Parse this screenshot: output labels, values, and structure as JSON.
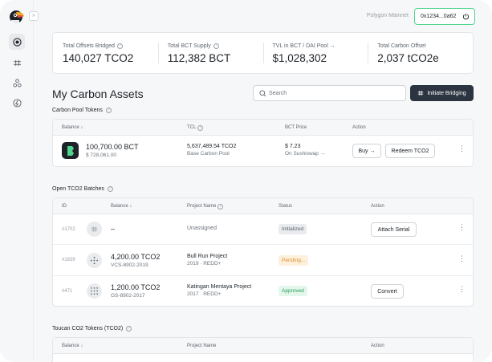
{
  "header": {
    "network": "Polygon Mainnet",
    "wallet_address": "0x1234...0a62"
  },
  "stats": [
    {
      "label": "Total Offsets Bridged",
      "value": "140,027 TCO2",
      "help": true
    },
    {
      "label": "Total BCT Supply",
      "value": "112,382 BCT",
      "help": true
    },
    {
      "label": "TVL in BCT / DAI Pool →",
      "value": "$1,028,302",
      "help": false
    },
    {
      "label": "Total Carbon Offset",
      "value": "2,037 tCO2e",
      "help": false
    }
  ],
  "page_title": "My Carbon Assets",
  "search": {
    "placeholder": "Search"
  },
  "bridge_button": {
    "label": "Initiate Bridging"
  },
  "pool_tokens": {
    "title": "Carbon Pool Tokens",
    "columns": [
      "Balance ↓",
      "TCL",
      "BCT Price",
      "Action"
    ],
    "rows": [
      {
        "balance": "100,700.00 BCT",
        "balance_usd": "$ 728,061.00",
        "tcl_value": "5,637,489.54 TCO2",
        "tcl_name": "Base Carbon Pool",
        "price": "$ 7.23",
        "price_source": "On Sushiswap →",
        "buy_label": "Buy →",
        "redeem_label": "Redeem TCO2"
      }
    ]
  },
  "batches": {
    "title": "Open TCO2 Batches",
    "columns": [
      "ID",
      "Balance ↓",
      "Project Name",
      "Status",
      "Action"
    ],
    "rows": [
      {
        "id": "#1702",
        "balance": "–",
        "balance_sub": "",
        "project": "Unassigned",
        "project_sub": "",
        "status": "Initialized",
        "action": "Attach Serial"
      },
      {
        "id": "#1839",
        "balance": "4,200.00 TCO2",
        "balance_sub": "VCS-8902-2019",
        "project": "Bull Run Project",
        "project_sub": "2019 · REDD+",
        "status": "Pending...",
        "action": ""
      },
      {
        "id": "#471",
        "balance": "1,200.00 TCO2",
        "balance_sub": "GS-8902-2017",
        "project": "Katingan Mentaya Project",
        "project_sub": "2017 · REDD+",
        "status": "Approved",
        "action": "Convert"
      }
    ]
  },
  "toucan_tokens": {
    "title": "Toucan CO2 Tokens (TCO2)",
    "columns": [
      "Balance ↓",
      "Project Name",
      "Action"
    ]
  },
  "colors": {
    "accent_green": "#4fd68e",
    "dark_button": "#2b3440",
    "initialized_bg": "#e9ebee",
    "pending_bg": "#fdf0dc",
    "pending_text": "#e0902a",
    "approved_bg": "#e4f7ec",
    "approved_text": "#2a9d5b"
  }
}
